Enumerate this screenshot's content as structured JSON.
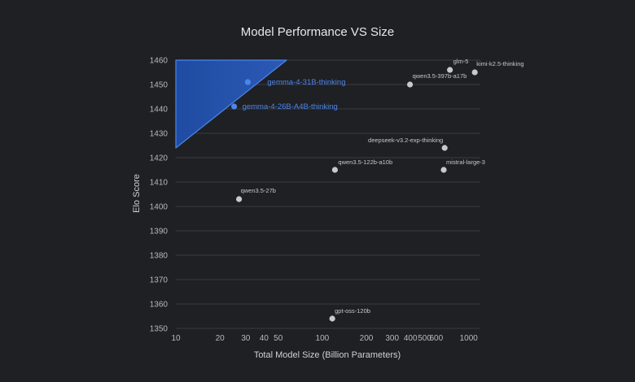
{
  "chart_data": {
    "type": "scatter",
    "title": "Model Performance VS Size",
    "xlabel": "Total Model Size (Billion Parameters)",
    "ylabel": "Elo Score",
    "x_scale": "log",
    "xlim": [
      10,
      1200
    ],
    "ylim": [
      1350,
      1460
    ],
    "x_ticks": [
      10,
      20,
      30,
      40,
      50,
      100,
      200,
      300,
      400,
      500,
      600,
      1000
    ],
    "x_tick_labels": [
      "10",
      "20",
      "30",
      "40",
      "50",
      "100",
      "200",
      "300",
      "400",
      "500",
      "600",
      "1000"
    ],
    "y_ticks": [
      1350,
      1360,
      1370,
      1380,
      1390,
      1400,
      1410,
      1420,
      1430,
      1440,
      1450,
      1460
    ],
    "grid": "horizontal",
    "highlight_region": {
      "color": "#2d5fc4",
      "vertices": [
        [
          10,
          1424
        ],
        [
          10,
          1460
        ],
        [
          57,
          1460
        ]
      ]
    },
    "points": [
      {
        "label": "gemma-4-31B-thinking",
        "x": 31,
        "y": 1451,
        "highlight": true
      },
      {
        "label": "gemma-4-26B-A4B-thinking",
        "x": 25,
        "y": 1441,
        "highlight": true
      },
      {
        "label": "glm-5",
        "x": 744,
        "y": 1456,
        "highlight": false
      },
      {
        "label": "kimi-k2.5-thinking",
        "x": 1100,
        "y": 1455,
        "highlight": false
      },
      {
        "label": "qwen3.5-397b-a17b",
        "x": 397,
        "y": 1450,
        "highlight": false
      },
      {
        "label": "deepseek-v3.2-exp-thinking",
        "x": 685,
        "y": 1424,
        "highlight": false
      },
      {
        "label": "qwen3.5-122b-a10b",
        "x": 122,
        "y": 1415,
        "highlight": false
      },
      {
        "label": "mistral-large-3",
        "x": 675,
        "y": 1415,
        "highlight": false
      },
      {
        "label": "qwen3.5-27b",
        "x": 27,
        "y": 1403,
        "highlight": false
      },
      {
        "label": "gpt-oss-120b",
        "x": 117,
        "y": 1354,
        "highlight": false
      }
    ],
    "colors": {
      "highlight": "#4a86ee",
      "point": "#c9c9cd"
    }
  }
}
